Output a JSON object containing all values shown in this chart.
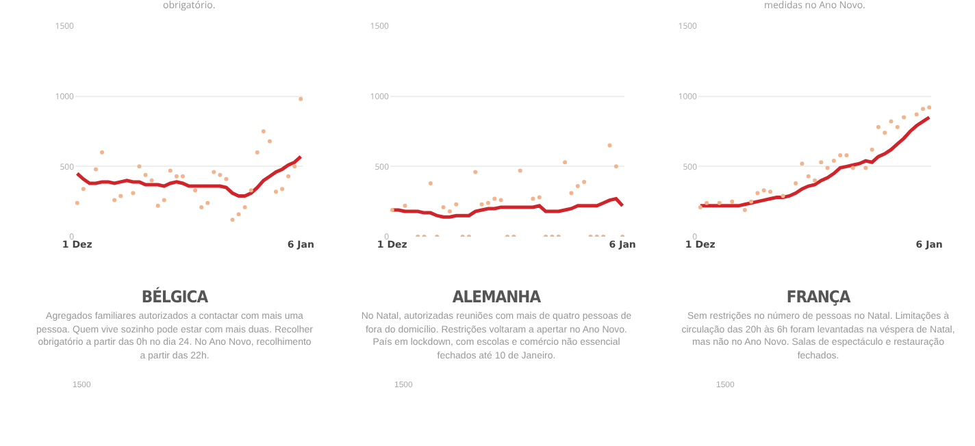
{
  "chart_data": [
    {
      "type": "line",
      "subtitle": "obrigatório.",
      "categories": [
        "1 Dez",
        null,
        null,
        null,
        null,
        null,
        null,
        null,
        null,
        null,
        null,
        null,
        null,
        null,
        null,
        null,
        null,
        null,
        null,
        null,
        null,
        null,
        null,
        null,
        null,
        null,
        null,
        null,
        null,
        null,
        null,
        null,
        null,
        null,
        null,
        null,
        "6 Jan"
      ],
      "ylim": [
        0,
        1500
      ],
      "yticks": [
        0,
        500,
        1000,
        1500
      ],
      "grid": "y",
      "series": [
        {
          "type": "scatter",
          "color": "#f2b48c",
          "values": [
            240,
            340,
            null,
            480,
            600,
            null,
            260,
            290,
            null,
            310,
            500,
            440,
            400,
            220,
            260,
            470,
            430,
            430,
            null,
            330,
            210,
            240,
            460,
            440,
            410,
            120,
            160,
            210,
            330,
            600,
            750,
            680,
            320,
            340,
            430,
            500,
            980
          ]
        },
        {
          "type": "line",
          "color": "#d0242b",
          "values": [
            450,
            410,
            380,
            380,
            390,
            390,
            380,
            390,
            400,
            390,
            390,
            370,
            370,
            370,
            360,
            380,
            390,
            380,
            360,
            360,
            360,
            360,
            360,
            360,
            350,
            310,
            290,
            290,
            310,
            350,
            400,
            430,
            460,
            480,
            510,
            530,
            570
          ]
        }
      ]
    },
    {
      "type": "line",
      "categories": [
        "1 Dez",
        null,
        null,
        null,
        null,
        null,
        null,
        null,
        null,
        null,
        null,
        null,
        null,
        null,
        null,
        null,
        null,
        null,
        null,
        null,
        null,
        null,
        null,
        null,
        null,
        null,
        null,
        null,
        null,
        null,
        null,
        null,
        null,
        null,
        null,
        null,
        "6 Jan"
      ],
      "ylim": [
        0,
        1500
      ],
      "yticks": [
        0,
        500,
        1000,
        1500
      ],
      "grid": "y",
      "series": [
        {
          "type": "scatter",
          "color": "#f2b48c",
          "values": [
            190,
            null,
            220,
            null,
            0,
            0,
            380,
            0,
            210,
            180,
            230,
            0,
            0,
            460,
            230,
            240,
            270,
            260,
            0,
            0,
            470,
            null,
            270,
            280,
            0,
            0,
            0,
            530,
            310,
            360,
            390,
            0,
            0,
            0,
            650,
            500,
            0
          ]
        },
        {
          "type": "line",
          "color": "#d0242b",
          "values": [
            190,
            190,
            180,
            180,
            180,
            170,
            170,
            150,
            140,
            140,
            150,
            150,
            150,
            180,
            190,
            200,
            200,
            210,
            210,
            210,
            210,
            210,
            210,
            220,
            180,
            180,
            180,
            190,
            200,
            220,
            220,
            220,
            220,
            240,
            260,
            270,
            220
          ]
        }
      ]
    },
    {
      "type": "line",
      "subtitle": "medidas no Ano Novo.",
      "categories": [
        "1 Dez",
        null,
        null,
        null,
        null,
        null,
        null,
        null,
        null,
        null,
        null,
        null,
        null,
        null,
        null,
        null,
        null,
        null,
        null,
        null,
        null,
        null,
        null,
        null,
        null,
        null,
        null,
        null,
        null,
        null,
        null,
        null,
        null,
        null,
        null,
        null,
        "6 Jan"
      ],
      "ylim": [
        0,
        1500
      ],
      "yticks": [
        0,
        500,
        1000,
        1500
      ],
      "grid": "y",
      "series": [
        {
          "type": "scatter",
          "color": "#f2b48c",
          "values": [
            210,
            240,
            null,
            240,
            null,
            250,
            null,
            190,
            250,
            310,
            330,
            320,
            null,
            290,
            null,
            380,
            520,
            430,
            400,
            530,
            490,
            540,
            580,
            580,
            490,
            null,
            490,
            620,
            780,
            740,
            820,
            780,
            850,
            null,
            870,
            910,
            920
          ]
        },
        {
          "type": "line",
          "color": "#d0242b",
          "values": [
            220,
            220,
            220,
            220,
            220,
            220,
            220,
            230,
            240,
            250,
            260,
            270,
            280,
            280,
            290,
            310,
            340,
            360,
            370,
            400,
            420,
            450,
            490,
            500,
            510,
            520,
            540,
            530,
            570,
            590,
            620,
            660,
            700,
            750,
            790,
            820,
            850
          ]
        }
      ]
    },
    {
      "type": "other",
      "title": "BÉLGICA",
      "subtitle": "Agregados familiares autorizados a contactar com mais uma pessoa. Quem vive sozinho pode estar com mais duas. Recolher obrigatório a partir das 0h no dia 24. No Ano Novo, recolhimento a partir das 22h.",
      "annotations": [
        "1500"
      ]
    },
    {
      "type": "other",
      "title": "ALEMANHA",
      "subtitle": "No Natal, autorizadas reuniões com mais de quatro pessoas de fora do domicílio. Restrições voltaram a apertar no Ano Novo. País em lockdown, com escolas e comércio não essencial fechados até 10 de Janeiro.",
      "annotations": [
        "1500"
      ]
    },
    {
      "type": "other",
      "title": "FRANÇA",
      "subtitle": "Sem restrições no número de pessoas no Natal. Limitações à circulação das 20h às 6h foram levantadas na véspera de Natal, mas não no Ano Novo. Salas de espectáculo e restauração fechados.",
      "annotations": [
        "1500"
      ]
    }
  ]
}
